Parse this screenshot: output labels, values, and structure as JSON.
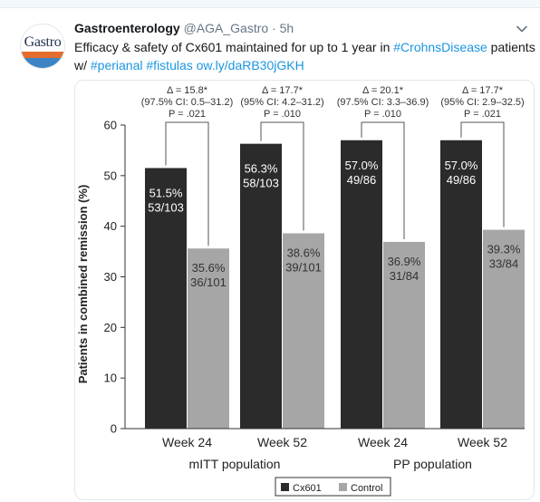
{
  "tweet": {
    "author_name": "Gastroenterology",
    "handle": "@AGA_Gastro",
    "separator": "·",
    "time": "5h",
    "avatar_text": "Gastro",
    "text_parts": {
      "intro": "Efficacy & safety of Cx601 maintained for up to 1 year in ",
      "hashtag1": "#CrohnsDisease",
      "mid1": " patients w/ ",
      "hashtag2": "#perianal",
      "space1": " ",
      "hashtag3": "#fistulas",
      "space2": " ",
      "link": "ow.ly/daRB30jGKH"
    },
    "colors": {
      "link": "#1b95e0",
      "name": "#14171a",
      "meta": "#657786"
    }
  },
  "chart_data": {
    "type": "bar",
    "ylabel": "Patients in combined remission (%)",
    "ylim": [
      0,
      60
    ],
    "yticks": [
      0,
      10,
      20,
      30,
      40,
      50,
      60
    ],
    "categories": [
      "Week 24",
      "Week 52",
      "Week 24",
      "Week 52"
    ],
    "groups": [
      "mITT population",
      "PP population"
    ],
    "series": [
      {
        "name": "Cx601",
        "color": "#2b2b2b",
        "values": [
          51.5,
          56.3,
          57.0,
          57.0
        ],
        "labels": [
          [
            "51.5%",
            "53/103"
          ],
          [
            "56.3%",
            "58/103"
          ],
          [
            "57.0%",
            "49/86"
          ],
          [
            "57.0%",
            "49/86"
          ]
        ]
      },
      {
        "name": "Control",
        "color": "#a6a6a6",
        "values": [
          35.6,
          38.6,
          36.9,
          39.3
        ],
        "labels": [
          [
            "35.6%",
            "36/101"
          ],
          [
            "38.6%",
            "39/101"
          ],
          [
            "36.9%",
            "31/84"
          ],
          [
            "39.3%",
            "33/84"
          ]
        ]
      }
    ],
    "annotations": [
      [
        "Δ = 15.8*",
        "(97.5% CI: 0.5–31.2)",
        "P = .021"
      ],
      [
        "Δ = 17.7*",
        "(95% CI: 4.2–31.2)",
        "P = .010"
      ],
      [
        "Δ = 20.1*",
        "(97.5% CI: 3.3–36.9)",
        "P = .010"
      ],
      [
        "Δ = 17.7*",
        "(95% CI: 2.9–32.5)",
        "P = .021"
      ]
    ],
    "legend_placement": "bottom-center",
    "grid": false
  }
}
